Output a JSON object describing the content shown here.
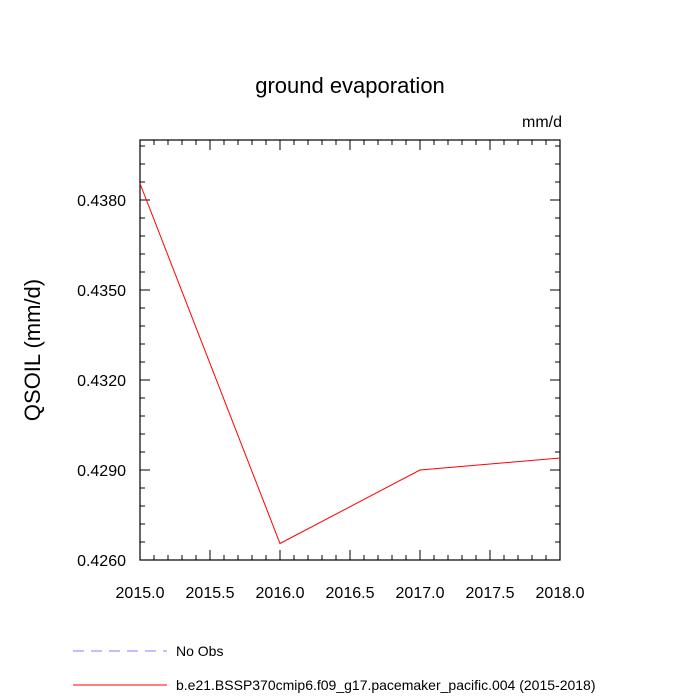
{
  "chart_data": {
    "type": "line",
    "title": "ground evaporation",
    "units": "mm/d",
    "ylabel": "QSOIL  (mm/d)",
    "xlabel": "",
    "xlim": [
      2015.0,
      2018.0
    ],
    "ylim": [
      0.426,
      0.44
    ],
    "x_ticks": [
      "2015.0",
      "2015.5",
      "2016.0",
      "2016.5",
      "2017.0",
      "2017.5",
      "2018.0"
    ],
    "y_ticks": [
      "0.4260",
      "0.4290",
      "0.4320",
      "0.4350",
      "0.4380"
    ],
    "grid": false,
    "series": [
      {
        "name": "b.e21.BSSP370cmip6.f09_g17.pacemaker_pacific.004 (2015-2018)",
        "color": "#ff0000",
        "dash": "solid",
        "x": [
          2015.0,
          2016.0,
          2017.0,
          2018.0
        ],
        "y": [
          0.43855,
          0.42655,
          0.429,
          0.4294
        ]
      }
    ],
    "legend": {
      "placement": "bottom",
      "entries": [
        {
          "label": "No Obs",
          "color": "#8080ff",
          "dash": "dashed"
        },
        {
          "label": "b.e21.BSSP370cmip6.f09_g17.pacemaker_pacific.004 (2015-2018)",
          "color": "#ff0000",
          "dash": "solid"
        }
      ]
    }
  }
}
